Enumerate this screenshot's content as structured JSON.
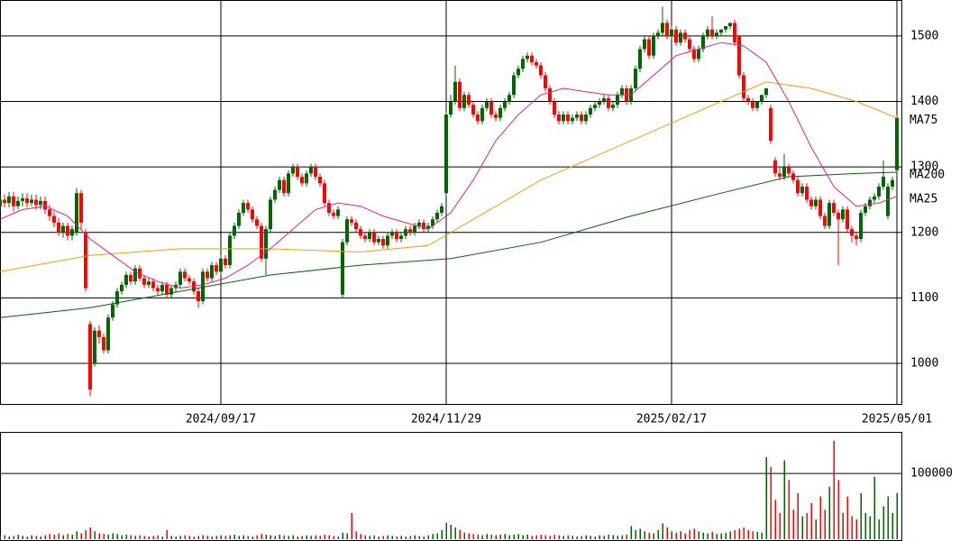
{
  "chart_data": {
    "type": "candlestick",
    "up_color": "#006600",
    "down_color": "#ff0000",
    "xlim": [
      -0.5,
      199.5
    ],
    "xticks": [
      {
        "value": 49,
        "label": "2024/09/17"
      },
      {
        "value": 99,
        "label": "2024/11/29"
      },
      {
        "value": 149,
        "label": "2025/02/17"
      },
      {
        "value": 199,
        "label": "2025/05/01"
      }
    ],
    "ylim": [
      938,
      1555
    ],
    "yticks": [
      1000,
      1100,
      1200,
      1300,
      1400,
      1500
    ],
    "open": [
      1240,
      1250,
      1245,
      1255,
      1240,
      1248,
      1252,
      1245,
      1250,
      1242,
      1248,
      1235,
      1225,
      1215,
      1200,
      1210,
      1195,
      1200,
      1260,
      1200,
      1060,
      1000,
      1050,
      1040,
      1020,
      1070,
      1090,
      1110,
      1120,
      1135,
      1125,
      1145,
      1130,
      1120,
      1125,
      1115,
      1110,
      1120,
      1105,
      1115,
      1120,
      1140,
      1130,
      1125,
      1110,
      1095,
      1140,
      1130,
      1150,
      1140,
      1160,
      1150,
      1195,
      1210,
      1230,
      1245,
      1235,
      1220,
      1210,
      1160,
      1205,
      1250,
      1265,
      1280,
      1260,
      1290,
      1300,
      1285,
      1275,
      1290,
      1300,
      1285,
      1275,
      1245,
      1230,
      1225,
      1105,
      1185,
      1220,
      1215,
      1205,
      1195,
      1190,
      1200,
      1185,
      1190,
      1180,
      1195,
      1200,
      1190,
      1195,
      1205,
      1200,
      1210,
      1215,
      1205,
      1210,
      1220,
      1230,
      1260,
      1380,
      1400,
      1430,
      1390,
      1410,
      1395,
      1380,
      1370,
      1390,
      1400,
      1380,
      1375,
      1390,
      1400,
      1410,
      1440,
      1450,
      1465,
      1470,
      1460,
      1455,
      1440,
      1420,
      1400,
      1380,
      1370,
      1380,
      1370,
      1375,
      1380,
      1370,
      1380,
      1390,
      1395,
      1400,
      1405,
      1390,
      1395,
      1410,
      1420,
      1400,
      1420,
      1450,
      1480,
      1495,
      1470,
      1500,
      1505,
      1520,
      1500,
      1510,
      1490,
      1505,
      1495,
      1480,
      1465,
      1480,
      1500,
      1510,
      1500,
      1505,
      1510,
      1515,
      1520,
      1500,
      1440,
      1405,
      1400,
      1390,
      1400,
      1410,
      1390,
      1310,
      1290,
      1285,
      1300,
      1290,
      1280,
      1260,
      1270,
      1250,
      1240,
      1250,
      1225,
      1210,
      1245,
      1230,
      1220,
      1235,
      1205,
      1195,
      1190,
      1230,
      1240,
      1250,
      1255,
      1270,
      1225,
      1270,
      1295
    ],
    "high": [
      1258,
      1258,
      1262,
      1262,
      1255,
      1260,
      1260,
      1258,
      1258,
      1255,
      1255,
      1242,
      1232,
      1222,
      1215,
      1215,
      1210,
      1268,
      1265,
      1205,
      1065,
      1055,
      1058,
      1045,
      1075,
      1095,
      1115,
      1125,
      1140,
      1140,
      1150,
      1150,
      1135,
      1130,
      1130,
      1120,
      1125,
      1125,
      1120,
      1125,
      1145,
      1145,
      1135,
      1130,
      1115,
      1145,
      1145,
      1155,
      1155,
      1165,
      1165,
      1200,
      1215,
      1235,
      1250,
      1250,
      1240,
      1225,
      1215,
      1210,
      1255,
      1270,
      1285,
      1285,
      1295,
      1305,
      1305,
      1290,
      1295,
      1305,
      1305,
      1290,
      1280,
      1250,
      1235,
      1240,
      1190,
      1225,
      1225,
      1220,
      1210,
      1200,
      1205,
      1205,
      1195,
      1195,
      1200,
      1205,
      1205,
      1200,
      1210,
      1210,
      1215,
      1220,
      1220,
      1215,
      1225,
      1235,
      1245,
      1385,
      1410,
      1455,
      1435,
      1415,
      1415,
      1400,
      1385,
      1395,
      1405,
      1405,
      1385,
      1395,
      1405,
      1415,
      1445,
      1455,
      1470,
      1475,
      1475,
      1465,
      1460,
      1445,
      1425,
      1405,
      1385,
      1385,
      1385,
      1380,
      1385,
      1385,
      1385,
      1395,
      1400,
      1405,
      1410,
      1410,
      1400,
      1415,
      1425,
      1425,
      1425,
      1455,
      1485,
      1500,
      1500,
      1505,
      1510,
      1545,
      1525,
      1515,
      1515,
      1510,
      1510,
      1500,
      1485,
      1485,
      1505,
      1515,
      1530,
      1510,
      1510,
      1515,
      1520,
      1525,
      1500,
      1445,
      1410,
      1405,
      1400,
      1410,
      1420,
      1395,
      1315,
      1300,
      1320,
      1305,
      1295,
      1285,
      1275,
      1275,
      1255,
      1255,
      1255,
      1230,
      1250,
      1250,
      1235,
      1240,
      1240,
      1210,
      1200,
      1235,
      1245,
      1255,
      1260,
      1275,
      1310,
      1275,
      1285,
      1380
    ],
    "low": [
      1232,
      1238,
      1238,
      1232,
      1235,
      1240,
      1238,
      1240,
      1235,
      1235,
      1228,
      1218,
      1208,
      1195,
      1192,
      1188,
      1188,
      1195,
      1205,
      1110,
      950,
      995,
      1030,
      1015,
      1015,
      1065,
      1085,
      1105,
      1115,
      1120,
      1120,
      1125,
      1115,
      1115,
      1110,
      1105,
      1105,
      1100,
      1100,
      1108,
      1115,
      1125,
      1120,
      1105,
      1085,
      1090,
      1125,
      1125,
      1135,
      1135,
      1145,
      1145,
      1190,
      1205,
      1225,
      1230,
      1215,
      1205,
      1155,
      1135,
      1200,
      1245,
      1260,
      1255,
      1255,
      1285,
      1280,
      1270,
      1270,
      1285,
      1280,
      1270,
      1240,
      1225,
      1220,
      1220,
      1100,
      1180,
      1210,
      1200,
      1190,
      1185,
      1185,
      1180,
      1180,
      1175,
      1175,
      1190,
      1185,
      1185,
      1190,
      1195,
      1195,
      1205,
      1200,
      1200,
      1205,
      1215,
      1225,
      1255,
      1375,
      1395,
      1385,
      1385,
      1390,
      1375,
      1365,
      1365,
      1385,
      1375,
      1370,
      1370,
      1385,
      1395,
      1405,
      1435,
      1445,
      1460,
      1455,
      1450,
      1435,
      1415,
      1395,
      1375,
      1365,
      1365,
      1365,
      1365,
      1370,
      1365,
      1365,
      1375,
      1385,
      1390,
      1395,
      1385,
      1385,
      1390,
      1405,
      1395,
      1395,
      1415,
      1445,
      1475,
      1465,
      1465,
      1495,
      1500,
      1495,
      1495,
      1485,
      1485,
      1490,
      1475,
      1460,
      1460,
      1475,
      1495,
      1495,
      1495,
      1500,
      1505,
      1510,
      1485,
      1435,
      1400,
      1395,
      1385,
      1385,
      1395,
      1405,
      1335,
      1285,
      1280,
      1280,
      1285,
      1275,
      1255,
      1255,
      1245,
      1235,
      1235,
      1220,
      1205,
      1205,
      1225,
      1150,
      1215,
      1200,
      1185,
      1180,
      1185,
      1225,
      1235,
      1245,
      1250,
      1265,
      1220,
      1265,
      1290
    ],
    "close": [
      1250,
      1245,
      1255,
      1240,
      1248,
      1252,
      1245,
      1250,
      1242,
      1248,
      1235,
      1225,
      1215,
      1200,
      1210,
      1195,
      1205,
      1260,
      1215,
      1115,
      960,
      1050,
      1040,
      1020,
      1070,
      1090,
      1110,
      1120,
      1135,
      1125,
      1145,
      1130,
      1120,
      1125,
      1115,
      1110,
      1120,
      1105,
      1115,
      1120,
      1140,
      1130,
      1125,
      1110,
      1095,
      1140,
      1130,
      1150,
      1140,
      1160,
      1150,
      1195,
      1210,
      1230,
      1245,
      1235,
      1220,
      1210,
      1160,
      1205,
      1250,
      1265,
      1280,
      1260,
      1290,
      1300,
      1285,
      1275,
      1290,
      1300,
      1285,
      1275,
      1245,
      1230,
      1225,
      1235,
      1185,
      1220,
      1215,
      1205,
      1195,
      1190,
      1200,
      1185,
      1190,
      1180,
      1195,
      1200,
      1190,
      1195,
      1205,
      1200,
      1210,
      1215,
      1205,
      1210,
      1220,
      1230,
      1240,
      1380,
      1400,
      1430,
      1390,
      1410,
      1395,
      1380,
      1370,
      1390,
      1400,
      1380,
      1375,
      1390,
      1400,
      1410,
      1440,
      1450,
      1465,
      1470,
      1460,
      1455,
      1440,
      1420,
      1400,
      1380,
      1370,
      1380,
      1370,
      1375,
      1380,
      1370,
      1380,
      1390,
      1395,
      1400,
      1405,
      1390,
      1395,
      1410,
      1420,
      1400,
      1420,
      1450,
      1480,
      1495,
      1470,
      1500,
      1505,
      1520,
      1500,
      1510,
      1490,
      1505,
      1495,
      1480,
      1465,
      1480,
      1500,
      1510,
      1500,
      1505,
      1510,
      1515,
      1520,
      1490,
      1440,
      1405,
      1400,
      1390,
      1400,
      1410,
      1420,
      1340,
      1290,
      1285,
      1300,
      1290,
      1280,
      1260,
      1270,
      1250,
      1240,
      1250,
      1225,
      1210,
      1245,
      1230,
      1220,
      1235,
      1205,
      1195,
      1190,
      1230,
      1240,
      1250,
      1255,
      1270,
      1285,
      1270,
      1280,
      1375
    ],
    "ma": [
      {
        "name": "MA75",
        "color": "#ff9900",
        "x": [
          0,
          20,
          40,
          60,
          80,
          95,
          100,
          110,
          120,
          130,
          140,
          150,
          160,
          170,
          180,
          190,
          199
        ],
        "values": [
          1140,
          1165,
          1175,
          1175,
          1170,
          1180,
          1200,
          1240,
          1280,
          1310,
          1340,
          1370,
          1400,
          1430,
          1420,
          1400,
          1375
        ]
      },
      {
        "name": "MA200",
        "color": "#006600",
        "x": [
          0,
          20,
          40,
          60,
          80,
          100,
          120,
          140,
          160,
          175,
          190,
          199
        ],
        "values": [
          1070,
          1085,
          1110,
          1135,
          1150,
          1160,
          1185,
          1225,
          1260,
          1285,
          1290,
          1292
        ]
      },
      {
        "name": "MA25",
        "color": "#e0208e",
        "x": [
          0,
          5,
          10,
          15,
          20,
          25,
          30,
          35,
          40,
          45,
          50,
          55,
          60,
          65,
          70,
          75,
          80,
          85,
          90,
          95,
          100,
          105,
          110,
          115,
          120,
          125,
          130,
          135,
          140,
          145,
          150,
          155,
          160,
          165,
          170,
          175,
          180,
          185,
          190,
          195,
          199
        ],
        "values": [
          1220,
          1235,
          1240,
          1225,
          1190,
          1165,
          1140,
          1125,
          1115,
          1120,
          1130,
          1150,
          1175,
          1205,
          1235,
          1245,
          1240,
          1225,
          1215,
          1205,
          1230,
          1280,
          1340,
          1380,
          1410,
          1420,
          1415,
          1410,
          1410,
          1440,
          1470,
          1480,
          1490,
          1485,
          1460,
          1400,
          1330,
          1270,
          1240,
          1245,
          1255
        ]
      }
    ],
    "volume": {
      "ylim": [
        0,
        162000
      ],
      "yticks": [
        100000
      ],
      "values": [
        5000,
        6000,
        4000,
        5000,
        7000,
        5000,
        4000,
        6000,
        5000,
        4000,
        6000,
        8000,
        7000,
        9000,
        6000,
        8000,
        7000,
        12000,
        9000,
        14000,
        18000,
        12000,
        9000,
        8000,
        7000,
        9000,
        8000,
        6000,
        7000,
        6000,
        5000,
        6000,
        5000,
        4000,
        5000,
        6000,
        4000,
        14000,
        5000,
        4000,
        5000,
        6000,
        5000,
        4000,
        5000,
        6000,
        5000,
        4000,
        5000,
        6000,
        5000,
        6000,
        7000,
        5000,
        6000,
        5000,
        4000,
        6000,
        8000,
        7000,
        6000,
        5000,
        7000,
        6000,
        5000,
        6000,
        4000,
        5000,
        6000,
        5000,
        6000,
        5000,
        7000,
        6000,
        5000,
        4000,
        10000,
        9000,
        40000,
        12000,
        8000,
        6000,
        5000,
        6000,
        4000,
        5000,
        6000,
        5000,
        4000,
        5000,
        4000,
        5000,
        6000,
        5000,
        4000,
        6000,
        8000,
        9000,
        14000,
        25000,
        22000,
        18000,
        14000,
        10000,
        9000,
        8000,
        7000,
        6000,
        8000,
        7000,
        6000,
        7000,
        8000,
        6000,
        7000,
        8000,
        6000,
        7000,
        5000,
        6000,
        7000,
        6000,
        5000,
        7000,
        6000,
        5000,
        6000,
        5000,
        4000,
        5000,
        6000,
        5000,
        4000,
        6000,
        5000,
        7000,
        6000,
        5000,
        6000,
        7000,
        20000,
        14000,
        16000,
        12000,
        10000,
        9000,
        14000,
        24000,
        18000,
        12000,
        10000,
        12000,
        9000,
        14000,
        16000,
        12000,
        10000,
        9000,
        11000,
        8000,
        9000,
        10000,
        12000,
        14000,
        16000,
        18000,
        14000,
        12000,
        11000,
        10000,
        125000,
        110000,
        60000,
        40000,
        120000,
        90000,
        45000,
        70000,
        35000,
        40000,
        55000,
        30000,
        65000,
        45000,
        80000,
        150000,
        90000,
        40000,
        65000,
        35000,
        30000,
        70000,
        40000,
        35000,
        95000,
        30000,
        50000,
        65000,
        40000,
        70000
      ]
    }
  }
}
